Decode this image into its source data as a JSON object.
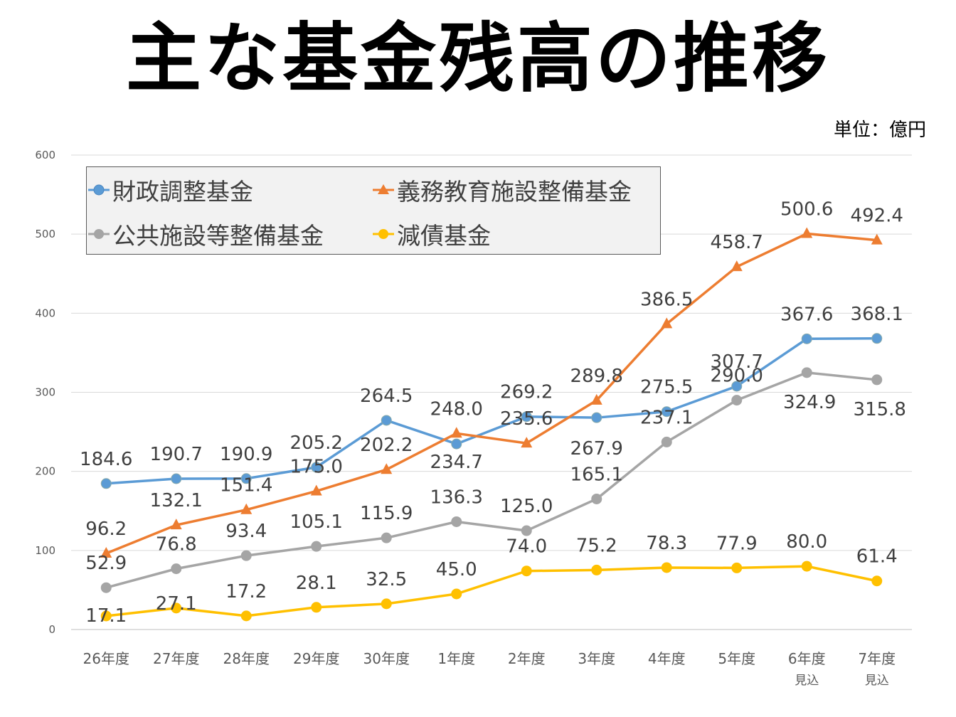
{
  "title": "主な基金残高の推移",
  "unit_label": "単位：億円",
  "chart_data": {
    "type": "line",
    "title": "主な基金残高の推移",
    "ylim": [
      0,
      600
    ],
    "yticks": [
      0,
      100,
      200,
      300,
      400,
      500,
      600
    ],
    "grid": true,
    "legend_position": "top-left",
    "categories": [
      {
        "line1": "26年度",
        "line2": ""
      },
      {
        "line1": "27年度",
        "line2": ""
      },
      {
        "line1": "28年度",
        "line2": ""
      },
      {
        "line1": "29年度",
        "line2": ""
      },
      {
        "line1": "30年度",
        "line2": ""
      },
      {
        "line1": "1年度",
        "line2": ""
      },
      {
        "line1": "2年度",
        "line2": ""
      },
      {
        "line1": "3年度",
        "line2": ""
      },
      {
        "line1": "4年度",
        "line2": ""
      },
      {
        "line1": "5年度",
        "line2": ""
      },
      {
        "line1": "6年度",
        "line2": "見込"
      },
      {
        "line1": "7年度",
        "line2": "見込"
      }
    ],
    "series": [
      {
        "name": "財政調整基金",
        "color": "#5b9bd5",
        "marker": "circle",
        "values": [
          184.6,
          190.7,
          190.9,
          205.2,
          264.5,
          234.7,
          269.2,
          267.9,
          275.5,
          307.7,
          367.6,
          368.1
        ],
        "labels": [
          "184.6",
          "190.7",
          "190.9",
          "205.2",
          "264.5",
          "234.7",
          "269.2",
          "267.9",
          "275.5",
          "307.7",
          "367.6",
          "368.1"
        ]
      },
      {
        "name": "義務教育施設整備基金",
        "color": "#ed7d31",
        "marker": "triangle",
        "values": [
          96.2,
          132.1,
          151.4,
          175.0,
          202.2,
          248.0,
          235.6,
          289.8,
          386.5,
          458.7,
          500.6,
          492.4
        ],
        "labels": [
          "96.2",
          "132.1",
          "151.4",
          "175.0",
          "202.2",
          "248.0",
          "235.6",
          "289.8",
          "386.5",
          "458.7",
          "500.6",
          "492.4"
        ]
      },
      {
        "name": "公共施設等整備基金",
        "color": "#a5a5a5",
        "marker": "circle",
        "values": [
          52.9,
          76.8,
          93.4,
          105.1,
          115.9,
          136.3,
          125.0,
          165.1,
          237.1,
          290.0,
          324.9,
          315.8
        ],
        "labels": [
          "52.9",
          "76.8",
          "93.4",
          "105.1",
          "115.9",
          "136.3",
          "125.0",
          "165.1",
          "237.1",
          "290.0",
          "324.9",
          "315.8"
        ]
      },
      {
        "name": "減債基金",
        "color": "#ffc000",
        "marker": "circle",
        "values": [
          17.1,
          27.1,
          17.2,
          28.1,
          32.5,
          45.0,
          74.0,
          75.2,
          78.3,
          77.9,
          80.0,
          61.4
        ],
        "labels": [
          "17.1",
          "27.1",
          "17.2",
          "28.1",
          "32.5",
          "45.0",
          "74.0",
          "75.2",
          "78.3",
          "77.9",
          "80.0",
          "61.4"
        ]
      }
    ]
  }
}
